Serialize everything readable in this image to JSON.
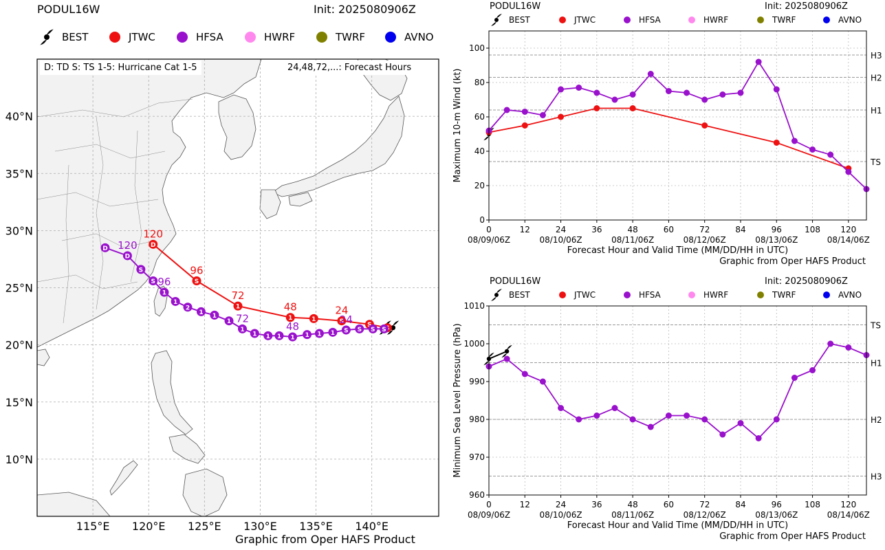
{
  "colors": {
    "best": "#000000",
    "jtwc": "#ee1111",
    "hfsa": "#9911cc",
    "hwrf": "#ff88ee",
    "twrf": "#808000",
    "avno": "#0000ee",
    "land": "#f2f2f2",
    "coast": "#555555",
    "grid": "#aaaaaa"
  },
  "map": {
    "title": "PODUL16W",
    "init": "Init: 2025080906Z",
    "legend": [
      {
        "label": "BEST",
        "key": "best",
        "icon": "hurricane-symbol-icon"
      },
      {
        "label": "JTWC",
        "key": "jtwc",
        "icon": "circle-marker-icon"
      },
      {
        "label": "HFSA",
        "key": "hfsa",
        "icon": "circle-marker-icon"
      },
      {
        "label": "HWRF",
        "key": "hwrf",
        "icon": "circle-marker-icon"
      },
      {
        "label": "TWRF",
        "key": "twrf",
        "icon": "circle-marker-icon"
      },
      {
        "label": "AVNO",
        "key": "avno",
        "icon": "circle-marker-icon"
      }
    ],
    "note_left": "D: TD   S: TS   1-5: Hurricane Cat 1-5",
    "note_right": "24,48,72,...: Forecast Hours",
    "footer": "Graphic from Oper HAFS Product",
    "lon_ticks": [
      "115°E",
      "120°E",
      "125°E",
      "130°E",
      "135°E",
      "140°E"
    ],
    "lat_ticks": [
      "10°N",
      "15°N",
      "20°N",
      "25°N",
      "30°N",
      "35°N",
      "40°N"
    ]
  },
  "wind": {
    "title": "PODUL16W",
    "init": "Init: 2025080906Z",
    "ylabel": "Maximum 10-m Wind (kt)",
    "xlabel": "Forecast Hour and Valid Time (MM/DD/HH in UTC)",
    "footer": "Graphic from Oper HAFS Product",
    "x_ticks": [
      "0",
      "12",
      "24",
      "36",
      "48",
      "60",
      "72",
      "84",
      "96",
      "108",
      "120"
    ],
    "y_ticks": [
      "0",
      "20",
      "40",
      "60",
      "80",
      "100"
    ],
    "date_labels": [
      "08/09/06Z",
      "08/10/06Z",
      "08/11/06Z",
      "08/12/06Z",
      "08/13/06Z",
      "08/14/06Z"
    ],
    "ref_labels": [
      "H3",
      "H2",
      "H1",
      "TS"
    ]
  },
  "pres": {
    "title": "PODUL16W",
    "init": "Init: 2025080906Z",
    "ylabel": "Minimum Sea Level Pressure (hPa)",
    "xlabel": "Forecast Hour and Valid Time (MM/DD/HH in UTC)",
    "footer": "Graphic from Oper HAFS Product",
    "x_ticks": [
      "0",
      "12",
      "24",
      "36",
      "48",
      "60",
      "72",
      "84",
      "96",
      "108",
      "120"
    ],
    "y_ticks": [
      "960",
      "970",
      "980",
      "990",
      "1000",
      "1010"
    ],
    "date_labels": [
      "08/09/06Z",
      "08/10/06Z",
      "08/11/06Z",
      "08/12/06Z",
      "08/13/06Z",
      "08/14/06Z"
    ],
    "ref_labels": [
      "TS",
      "H1",
      "H2",
      "H3"
    ]
  },
  "chart_data": [
    {
      "type": "line",
      "chart": "track-map",
      "xlim": [
        110,
        146
      ],
      "ylim": [
        5,
        45
      ],
      "series": [
        {
          "name": "BEST",
          "key": "best",
          "lon": [
            141.2,
            141.9
          ],
          "lat": [
            21.5,
            21.5
          ]
        },
        {
          "name": "JTWC",
          "key": "jtwc",
          "lon": [
            141.4,
            139.8,
            137.3,
            134.8,
            132.7,
            128.0,
            124.3,
            120.4
          ],
          "lat": [
            21.5,
            21.8,
            22.1,
            22.3,
            22.4,
            23.4,
            25.6,
            28.8
          ],
          "cat": [
            "S",
            "S",
            "S",
            "1",
            "1",
            "1",
            "S",
            "D"
          ],
          "hour_labels": [
            null,
            null,
            "24",
            null,
            "48",
            "72",
            "96",
            "120"
          ]
        },
        {
          "name": "HFSA",
          "key": "hfsa",
          "lon": [
            141.1,
            140.1,
            138.9,
            137.7,
            136.5,
            135.3,
            134.2,
            132.9,
            131.7,
            130.7,
            129.5,
            128.4,
            127.2,
            125.9,
            124.7,
            123.5,
            122.4,
            121.4,
            120.4,
            119.3,
            118.1,
            116.1
          ],
          "lat": [
            21.4,
            21.4,
            21.4,
            21.3,
            21.1,
            21.0,
            20.9,
            20.7,
            20.8,
            20.8,
            21.0,
            21.4,
            22.1,
            22.6,
            22.9,
            23.3,
            23.8,
            24.6,
            25.6,
            26.6,
            27.8,
            28.5
          ],
          "cat": [
            "S",
            "S",
            "S",
            "S",
            "1",
            "1",
            "1",
            "1",
            "1",
            "1",
            "1",
            "1",
            "1",
            "1",
            "1",
            "2",
            "1",
            "1",
            "S",
            "S",
            "D",
            "D"
          ],
          "hour_labels": [
            null,
            null,
            null,
            "24",
            null,
            null,
            null,
            "48",
            null,
            null,
            null,
            "72",
            null,
            null,
            null,
            null,
            null,
            "96",
            null,
            null,
            "120",
            null
          ]
        }
      ]
    },
    {
      "type": "line",
      "chart": "max-wind",
      "xlim": [
        0,
        126
      ],
      "ylim": [
        0,
        110
      ],
      "ref_lines": [
        96,
        83,
        64,
        34
      ],
      "series": [
        {
          "name": "BEST",
          "key": "best",
          "x": [
            0
          ],
          "y": [
            50
          ]
        },
        {
          "name": "JTWC",
          "key": "jtwc",
          "x": [
            0,
            12,
            24,
            36,
            48,
            72,
            96,
            120
          ],
          "y": [
            51,
            55,
            60,
            65,
            65,
            55,
            45,
            30
          ]
        },
        {
          "name": "HFSA",
          "key": "hfsa",
          "x": [
            0,
            6,
            12,
            18,
            24,
            30,
            36,
            42,
            48,
            54,
            60,
            66,
            72,
            78,
            84,
            90,
            96,
            102,
            108,
            114,
            120,
            126
          ],
          "y": [
            52,
            64,
            63,
            61,
            76,
            77,
            74,
            70,
            73,
            85,
            75,
            74,
            70,
            73,
            74,
            92,
            76,
            46,
            41,
            38,
            28,
            18
          ]
        }
      ]
    },
    {
      "type": "line",
      "chart": "min-pressure",
      "xlim": [
        0,
        126
      ],
      "ylim": [
        960,
        1010
      ],
      "ref_lines": [
        1005,
        995,
        980,
        965
      ],
      "series": [
        {
          "name": "BEST",
          "key": "best",
          "x": [
            0,
            6
          ],
          "y": [
            996,
            998
          ]
        },
        {
          "name": "HFSA",
          "key": "hfsa",
          "x": [
            0,
            6,
            12,
            18,
            24,
            30,
            36,
            42,
            48,
            54,
            60,
            66,
            72,
            78,
            84,
            90,
            96,
            102,
            108,
            114,
            120,
            126
          ],
          "y": [
            994,
            996,
            992,
            990,
            983,
            980,
            981,
            983,
            980,
            978,
            981,
            981,
            980,
            976,
            979,
            975,
            980,
            991,
            993,
            1000,
            999,
            997
          ]
        }
      ]
    }
  ]
}
